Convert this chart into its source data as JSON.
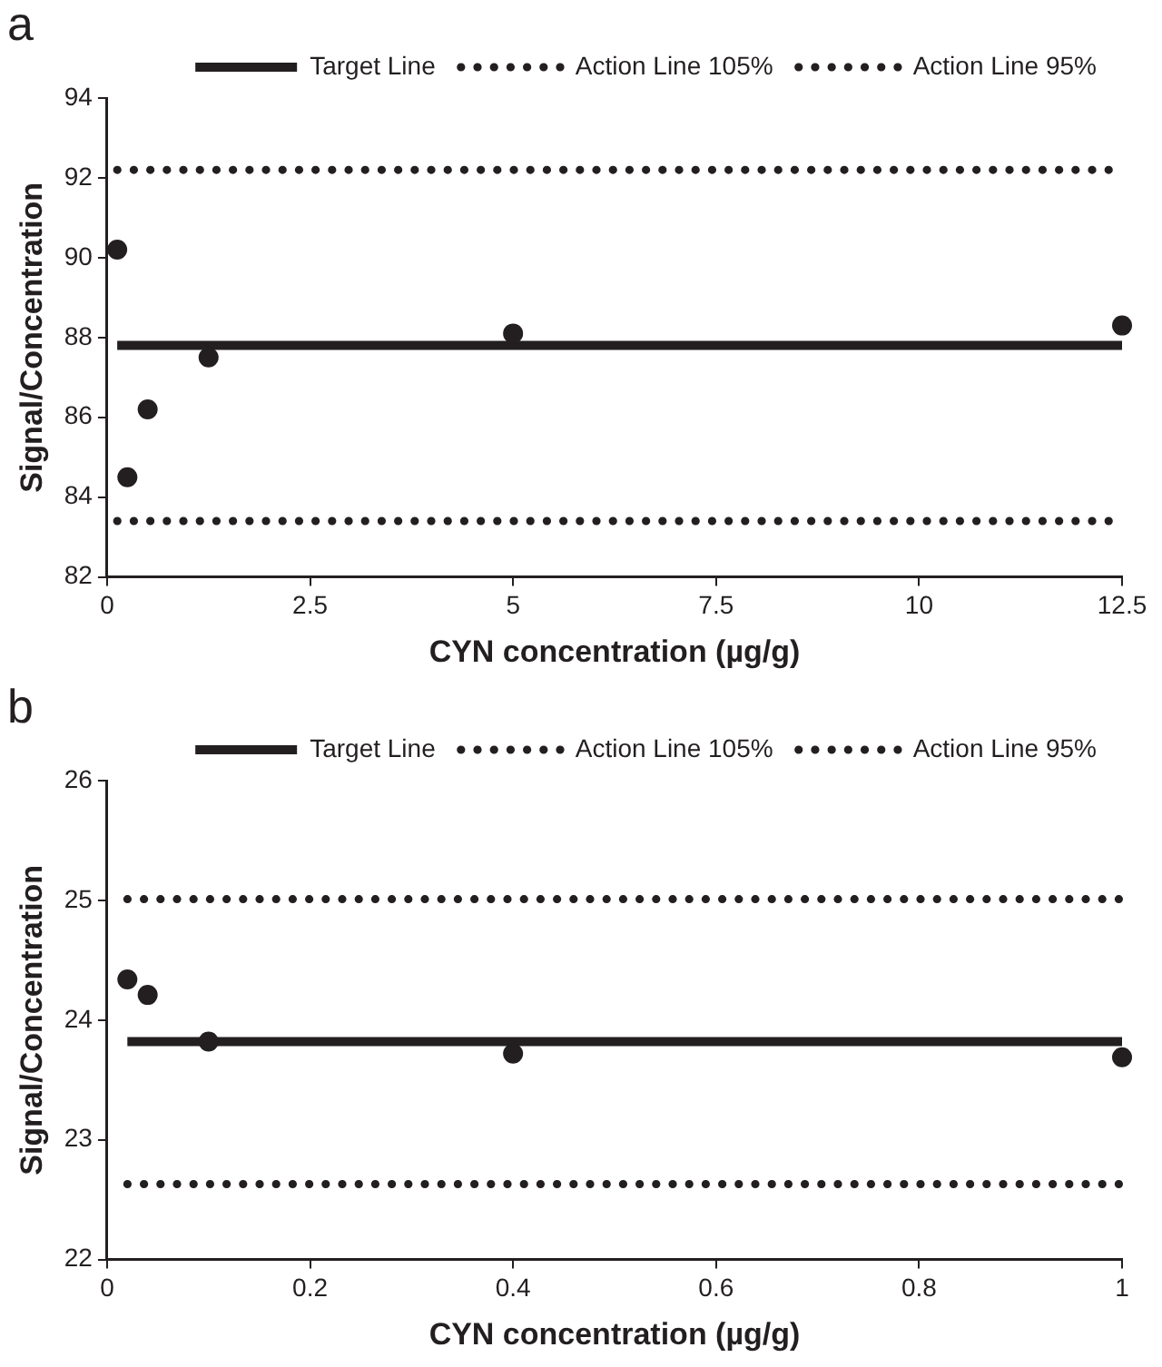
{
  "chart_data": [
    {
      "type": "scatter",
      "title": "a",
      "xlabel": "CYN concentration (µg/g)",
      "ylabel": "Signal/Concentration",
      "xlim": [
        0,
        12.5
      ],
      "xticks": [
        0,
        2.5,
        5,
        7.5,
        10,
        12.5
      ],
      "ylim": [
        82,
        94
      ],
      "yticks": [
        82,
        84,
        86,
        88,
        90,
        92,
        94
      ],
      "grid": false,
      "legend": "top",
      "series": [
        {
          "type": "line",
          "name": "Target Line",
          "color": "#231f20",
          "x": [
            0.125,
            12.5
          ],
          "values": [
            87.8,
            87.8
          ],
          "line_style": "solid",
          "marker": "none"
        },
        {
          "type": "line",
          "name": "Action Line 105%",
          "color": "#231f20",
          "x": [
            0.125,
            12.5
          ],
          "values": [
            92.2,
            92.2
          ],
          "line_style": "dotted",
          "marker": "none"
        },
        {
          "type": "line",
          "name": "Action Line 95%",
          "color": "#231f20",
          "x": [
            0.125,
            12.5
          ],
          "values": [
            83.4,
            83.4
          ],
          "line_style": "dotted",
          "marker": "none"
        },
        {
          "type": "scatter",
          "color": "#231f20",
          "x": [
            0.125,
            0.25,
            0.5,
            1.25,
            5,
            12.5
          ],
          "values": [
            90.2,
            84.5,
            86.2,
            87.5,
            88.1,
            88.3
          ],
          "marker": "circle"
        }
      ]
    },
    {
      "type": "scatter",
      "title": "b",
      "xlabel": "CYN concentration (µg/g)",
      "ylabel": "Signal/Concentration",
      "xlim": [
        0,
        1
      ],
      "xticks": [
        0,
        0.2,
        0.4,
        0.6,
        0.8,
        1
      ],
      "ylim": [
        22,
        26
      ],
      "yticks": [
        22,
        23,
        24,
        25,
        26
      ],
      "grid": false,
      "legend": "top",
      "series": [
        {
          "type": "line",
          "name": "Target Line",
          "color": "#231f20",
          "x": [
            0.02,
            1
          ],
          "values": [
            23.82,
            23.82
          ],
          "line_style": "solid",
          "marker": "none"
        },
        {
          "type": "line",
          "name": "Action Line 105%",
          "color": "#231f20",
          "x": [
            0.02,
            1
          ],
          "values": [
            25.01,
            25.01
          ],
          "line_style": "dotted",
          "marker": "none"
        },
        {
          "type": "line",
          "name": "Action Line 95%",
          "color": "#231f20",
          "x": [
            0.02,
            1
          ],
          "values": [
            22.63,
            22.63
          ],
          "line_style": "dotted",
          "marker": "none"
        },
        {
          "type": "scatter",
          "color": "#231f20",
          "x": [
            0.02,
            0.04,
            0.1,
            0.4,
            1
          ],
          "values": [
            24.34,
            24.21,
            23.82,
            23.72,
            23.69
          ],
          "marker": "circle"
        }
      ]
    }
  ]
}
